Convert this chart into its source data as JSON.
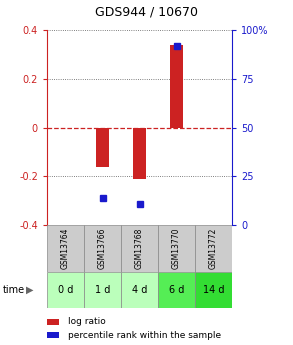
{
  "title": "GDS944 / 10670",
  "samples": [
    "GSM13764",
    "GSM13766",
    "GSM13768",
    "GSM13770",
    "GSM13772"
  ],
  "time_labels": [
    "0 d",
    "1 d",
    "4 d",
    "6 d",
    "14 d"
  ],
  "log_ratio": [
    0.0,
    -0.16,
    -0.21,
    0.34,
    0.0
  ],
  "percentile_rank": [
    null,
    14,
    11,
    92,
    null
  ],
  "ylim_left": [
    -0.4,
    0.4
  ],
  "ylim_right": [
    0,
    100
  ],
  "yticks_left": [
    -0.4,
    -0.2,
    0.0,
    0.2,
    0.4
  ],
  "yticks_right": [
    0,
    25,
    50,
    75,
    100
  ],
  "bar_color": "#cc2222",
  "dot_color": "#1a1acc",
  "zero_line_color": "#cc2222",
  "grid_color": "#555555",
  "bg_color": "#ffffff",
  "plot_bg": "#ffffff",
  "sample_header_bg": "#cccccc",
  "time_row_colors": [
    "#bbffbb",
    "#bbffbb",
    "#bbffbb",
    "#55ee55",
    "#33dd33"
  ],
  "legend_bar_label": "log ratio",
  "legend_dot_label": "percentile rank within the sample",
  "left_axis_color": "#cc2222",
  "right_axis_color": "#1a1acc"
}
